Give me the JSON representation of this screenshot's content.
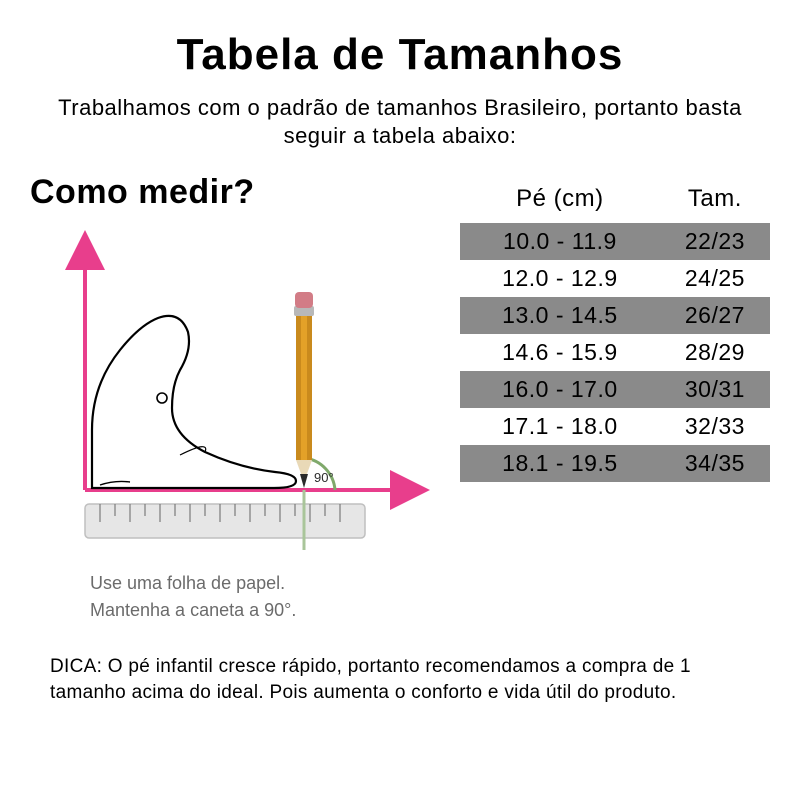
{
  "title": "Tabela de Tamanhos",
  "intro": "Trabalhamos com o padrão de tamanhos Brasileiro, portanto basta seguir a tabela abaixo:",
  "how_heading": "Como medir?",
  "diagram": {
    "angle_label": "90°",
    "caption_line1": "Use uma folha de papel.",
    "caption_line2": "Mantenha a caneta a 90°.",
    "colors": {
      "axis": "#e83e8c",
      "axis_arrow": "#e83e8c",
      "foot_outline": "#000000",
      "foot_fill": "#ffffff",
      "pencil_body": "#e3a128",
      "pencil_shaft_shade": "#c98a1d",
      "pencil_tip_wood": "#e9d9b7",
      "pencil_lead": "#2a2a2a",
      "pencil_eraser": "#d27c86",
      "pencil_band": "#b8b8b8",
      "ruler_fill": "#e6e6e6",
      "ruler_stroke": "#bfbfbf",
      "ruler_tick": "#7a7a7a",
      "angle_arc": "#7fa96b",
      "angle_text": "#2a2a2a"
    }
  },
  "table": {
    "head_foot": "Pé (cm)",
    "head_size": "Tam.",
    "rows": [
      {
        "foot": "10.0 - 11.9",
        "size": "22/23",
        "stripe": true
      },
      {
        "foot": "12.0 - 12.9",
        "size": "24/25",
        "stripe": false
      },
      {
        "foot": "13.0 - 14.5",
        "size": "26/27",
        "stripe": true
      },
      {
        "foot": "14.6 - 15.9",
        "size": "28/29",
        "stripe": false
      },
      {
        "foot": "16.0 - 17.0",
        "size": "30/31",
        "stripe": true
      },
      {
        "foot": "17.1 - 18.0",
        "size": "32/33",
        "stripe": false
      },
      {
        "foot": "18.1 - 19.5",
        "size": "34/35",
        "stripe": true
      }
    ],
    "stripe_color": "#8a8a8a",
    "header_fontsize": 24,
    "cell_fontsize": 23
  },
  "tip": "DICA: O pé infantil cresce rápido, portanto recomendamos a compra de 1 tamanho acima do ideal. Pois aumenta o conforto e vida útil do produto.",
  "typography": {
    "title_fontsize": 44,
    "intro_fontsize": 22,
    "how_fontsize": 34,
    "caption_fontsize": 18,
    "caption_color": "#6b6b6b",
    "tip_fontsize": 19,
    "text_color": "#000000",
    "background": "#ffffff"
  }
}
